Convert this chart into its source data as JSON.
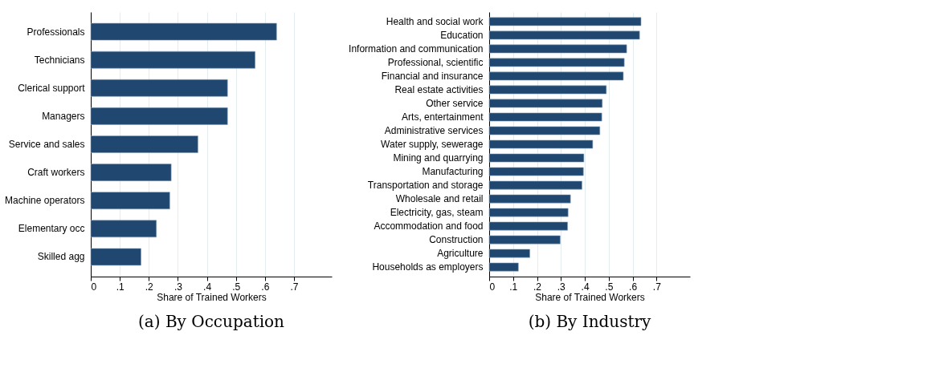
{
  "chart_data": [
    {
      "type": "bar",
      "orientation": "horizontal",
      "title": "(a) By Occupation",
      "xlabel": "Share of Trained Workers",
      "color": "#1f4770",
      "grid": "x",
      "categories": [
        "Professionals",
        "Technicians",
        "Clerical support",
        "Managers",
        "Service and sales",
        "Craft workers",
        "Machine operators",
        "Elementary occ",
        "Skilled agg"
      ],
      "values": [
        0.64,
        0.566,
        0.471,
        0.471,
        0.369,
        0.277,
        0.272,
        0.226,
        0.173
      ],
      "xlim": [
        0,
        0.83
      ],
      "xticks": [
        0,
        {
          "value": 0.1,
          "label": ".1"
        },
        {
          "value": 0.2,
          "label": ".2"
        },
        {
          "value": 0.3,
          "label": ".3"
        },
        {
          "value": 0.4,
          "label": ".4"
        },
        {
          "value": 0.5,
          "label": ".5"
        },
        {
          "value": 0.6,
          "label": ".6"
        },
        {
          "value": 0.7,
          "label": ".7"
        }
      ]
    },
    {
      "type": "bar",
      "orientation": "horizontal",
      "title": "(b) By Industry",
      "xlabel": "Share of Trained Workers",
      "color": "#1f4770",
      "grid": "x",
      "categories": [
        "Health and social work",
        "Education",
        "Information and communication",
        "Professional, scientific",
        "Financial and insurance",
        "Real estate activities",
        "Other service",
        "Arts, entertainment",
        "Administrative services",
        "Water supply, sewerage",
        "Mining and quarrying",
        "Manufacturing",
        "Transportation and storage",
        "Wholesale and retail",
        "Electricity, gas, steam",
        "Accommodation and food",
        "Construction",
        "Agriculture",
        "Households as employers"
      ],
      "values": [
        0.635,
        0.629,
        0.575,
        0.565,
        0.561,
        0.49,
        0.473,
        0.471,
        0.463,
        0.433,
        0.396,
        0.394,
        0.388,
        0.34,
        0.33,
        0.328,
        0.297,
        0.17,
        0.122
      ],
      "xlim": [
        0,
        0.84
      ],
      "xticks": [
        0,
        {
          "value": 0.1,
          "label": ".1"
        },
        {
          "value": 0.2,
          "label": ".2"
        },
        {
          "value": 0.3,
          "label": ".3"
        },
        {
          "value": 0.4,
          "label": ".4"
        },
        {
          "value": 0.5,
          "label": ".5"
        },
        {
          "value": 0.6,
          "label": ".6"
        },
        {
          "value": 0.7,
          "label": ".7"
        }
      ]
    }
  ]
}
